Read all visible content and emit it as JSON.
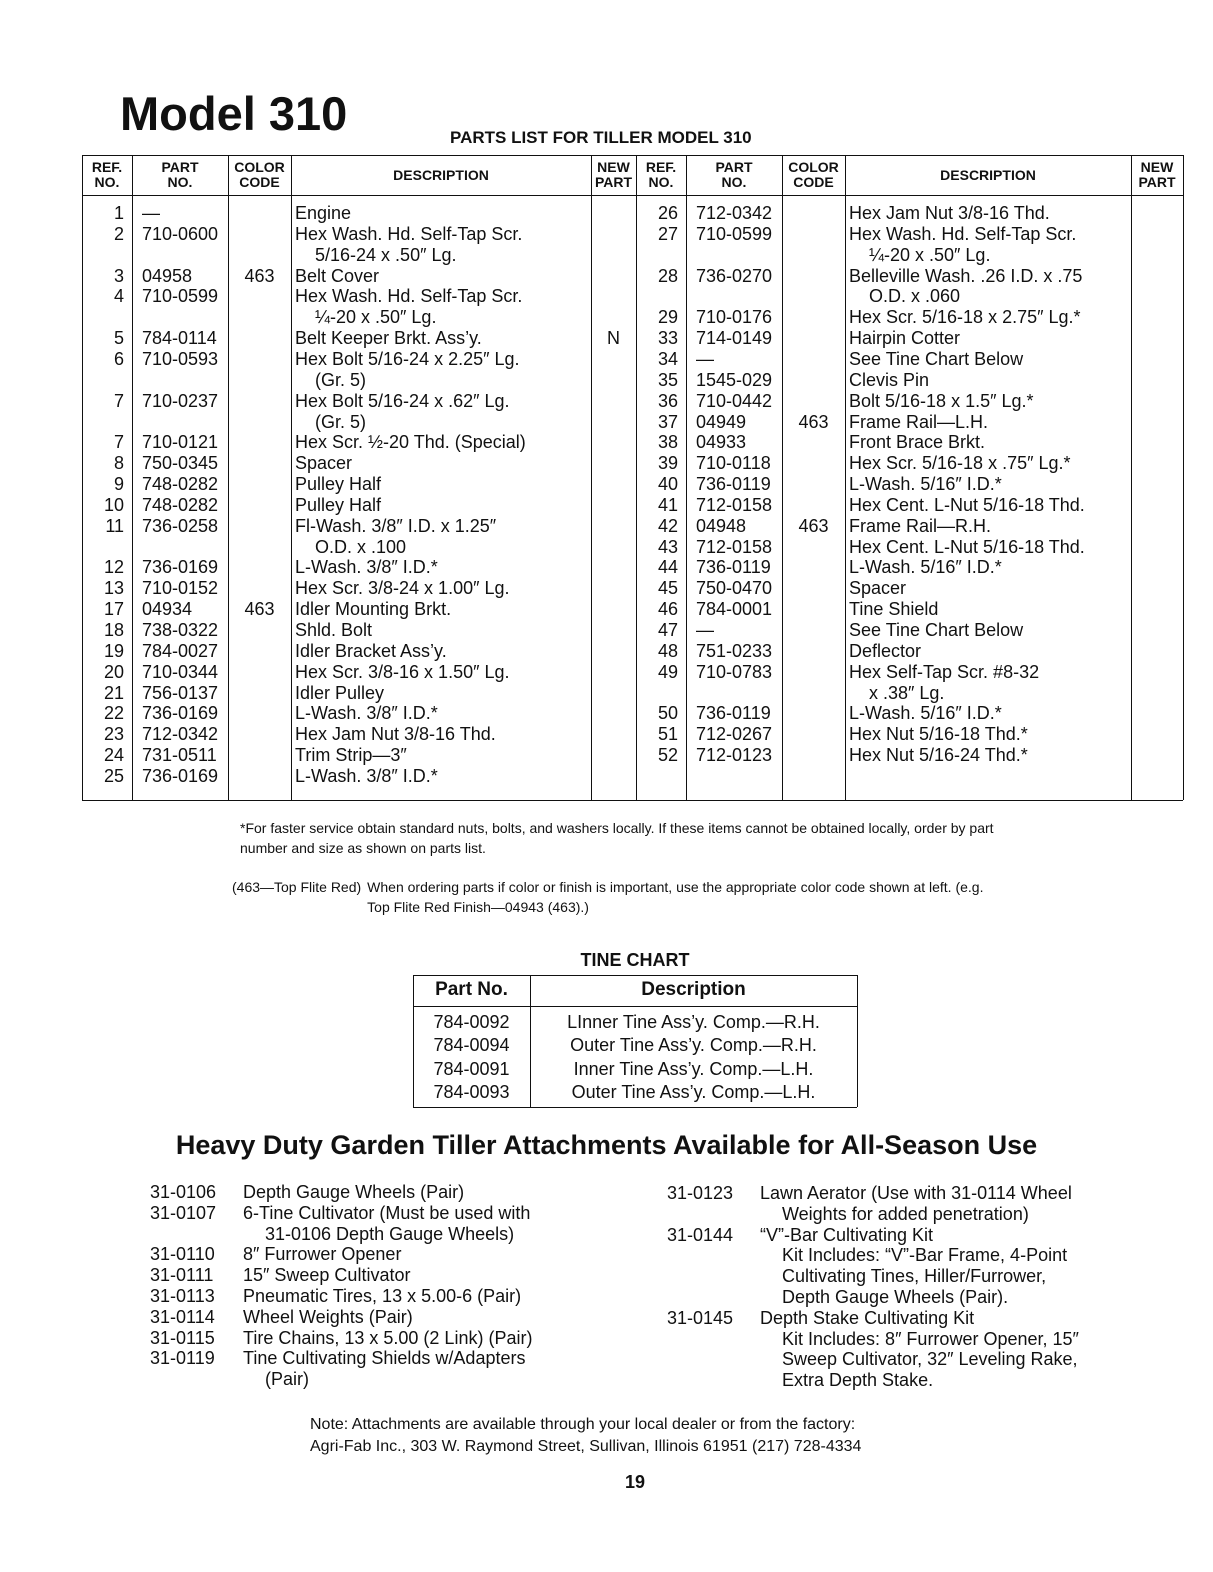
{
  "title": "Model 310",
  "parts_list": {
    "title": "PARTS LIST FOR TILLER MODEL 310",
    "columns": [
      "REF. NO.",
      "PART NO.",
      "COLOR CODE",
      "DESCRIPTION",
      "NEW PART"
    ],
    "left_rows": [
      {
        "ref": "1",
        "part": "—",
        "desc": [
          "Engine"
        ]
      },
      {
        "ref": "2",
        "part": "710-0600",
        "desc": [
          "Hex Wash. Hd. Self-Tap Scr.",
          "5/16-24 x .50″ Lg."
        ]
      },
      {
        "ref": "3",
        "part": "04958",
        "color": "463",
        "desc": [
          "Belt Cover"
        ]
      },
      {
        "ref": "4",
        "part": "710-0599",
        "desc": [
          "Hex Wash. Hd. Self-Tap Scr.",
          "¼-20 x .50″ Lg."
        ]
      },
      {
        "ref": "5",
        "part": "784-0114",
        "desc": [
          "Belt Keeper Brkt. Ass’y."
        ],
        "new": "N"
      },
      {
        "ref": "6",
        "part": "710-0593",
        "desc": [
          "Hex Bolt 5/16-24 x 2.25″ Lg.",
          "(Gr. 5)"
        ]
      },
      {
        "ref": "7",
        "part": "710-0237",
        "desc": [
          "Hex Bolt 5/16-24 x .62″ Lg.",
          "(Gr. 5)"
        ]
      },
      {
        "ref": "7",
        "part": "710-0121",
        "desc": [
          "Hex Scr. ½-20 Thd. (Special)"
        ]
      },
      {
        "ref": "8",
        "part": "750-0345",
        "desc": [
          "Spacer"
        ]
      },
      {
        "ref": "9",
        "part": "748-0282",
        "desc": [
          "Pulley Half"
        ]
      },
      {
        "ref": "10",
        "part": "748-0282",
        "desc": [
          "Pulley Half"
        ]
      },
      {
        "ref": "11",
        "part": "736-0258",
        "desc": [
          "Fl-Wash. 3/8″ I.D. x 1.25″",
          "O.D. x .100"
        ]
      },
      {
        "ref": "12",
        "part": "736-0169",
        "desc": [
          "L-Wash. 3/8″ I.D.*"
        ]
      },
      {
        "ref": "13",
        "part": "710-0152",
        "desc": [
          "Hex Scr. 3/8-24 x 1.00″ Lg."
        ]
      },
      {
        "ref": "17",
        "part": "04934",
        "color": "463",
        "desc": [
          "Idler Mounting Brkt."
        ]
      },
      {
        "ref": "18",
        "part": "738-0322",
        "desc": [
          "Shld. Bolt"
        ]
      },
      {
        "ref": "19",
        "part": "784-0027",
        "desc": [
          "Idler Bracket Ass’y."
        ]
      },
      {
        "ref": "20",
        "part": "710-0344",
        "desc": [
          "Hex Scr. 3/8-16 x 1.50″ Lg."
        ]
      },
      {
        "ref": "21",
        "part": "756-0137",
        "desc": [
          "Idler Pulley"
        ]
      },
      {
        "ref": "22",
        "part": "736-0169",
        "desc": [
          "L-Wash. 3/8″ I.D.*"
        ]
      },
      {
        "ref": "23",
        "part": "712-0342",
        "desc": [
          "Hex Jam Nut 3/8-16 Thd."
        ]
      },
      {
        "ref": "24",
        "part": "731-0511",
        "desc": [
          "Trim Strip—3″"
        ]
      },
      {
        "ref": "25",
        "part": "736-0169",
        "desc": [
          "L-Wash. 3/8″ I.D.*"
        ]
      }
    ],
    "right_rows": [
      {
        "ref": "26",
        "part": "712-0342",
        "desc": [
          "Hex Jam Nut 3/8-16 Thd."
        ]
      },
      {
        "ref": "27",
        "part": "710-0599",
        "desc": [
          "Hex Wash. Hd. Self-Tap Scr.",
          "¼-20 x .50″ Lg."
        ]
      },
      {
        "ref": "28",
        "part": "736-0270",
        "desc": [
          "Belleville Wash. .26 I.D. x .75",
          "O.D. x .060"
        ]
      },
      {
        "ref": "29",
        "part": "710-0176",
        "desc": [
          "Hex Scr. 5/16-18 x 2.75″ Lg.*"
        ]
      },
      {
        "ref": "33",
        "part": "714-0149",
        "desc": [
          "Hairpin Cotter"
        ]
      },
      {
        "ref": "34",
        "part": "—",
        "desc": [
          "See Tine Chart Below"
        ]
      },
      {
        "ref": "35",
        "part": "1545-029",
        "desc": [
          "Clevis Pin"
        ]
      },
      {
        "ref": "36",
        "part": "710-0442",
        "desc": [
          "Bolt 5/16-18 x 1.5″ Lg.*"
        ]
      },
      {
        "ref": "37",
        "part": "04949",
        "color": "463",
        "desc": [
          "Frame Rail—L.H."
        ]
      },
      {
        "ref": "38",
        "part": "04933",
        "desc": [
          "Front Brace Brkt."
        ]
      },
      {
        "ref": "39",
        "part": "710-0118",
        "desc": [
          "Hex Scr. 5/16-18 x .75″ Lg.*"
        ]
      },
      {
        "ref": "40",
        "part": "736-0119",
        "desc": [
          "L-Wash. 5/16″ I.D.*"
        ]
      },
      {
        "ref": "41",
        "part": "712-0158",
        "desc": [
          "Hex Cent. L-Nut 5/16-18 Thd."
        ]
      },
      {
        "ref": "42",
        "part": "04948",
        "color": "463",
        "desc": [
          "Frame Rail—R.H."
        ]
      },
      {
        "ref": "43",
        "part": "712-0158",
        "desc": [
          "Hex Cent. L-Nut 5/16-18 Thd."
        ]
      },
      {
        "ref": "44",
        "part": "736-0119",
        "desc": [
          "L-Wash. 5/16″ I.D.*"
        ]
      },
      {
        "ref": "45",
        "part": "750-0470",
        "desc": [
          "Spacer"
        ]
      },
      {
        "ref": "46",
        "part": "784-0001",
        "desc": [
          "Tine Shield"
        ]
      },
      {
        "ref": "47",
        "part": "—",
        "desc": [
          "See Tine Chart Below"
        ]
      },
      {
        "ref": "48",
        "part": "751-0233",
        "desc": [
          "Deflector"
        ]
      },
      {
        "ref": "49",
        "part": "710-0783",
        "desc": [
          "Hex Self-Tap Scr. #8-32",
          "x .38″ Lg."
        ]
      },
      {
        "ref": "50",
        "part": "736-0119",
        "desc": [
          "L-Wash. 5/16″ I.D.*"
        ]
      },
      {
        "ref": "51",
        "part": "712-0267",
        "desc": [
          "Hex Nut 5/16-18 Thd.*"
        ]
      },
      {
        "ref": "52",
        "part": "712-0123",
        "desc": [
          "Hex Nut 5/16-24 Thd.*"
        ]
      }
    ]
  },
  "footnote": "*For faster service obtain standard nuts, bolts, and washers locally. If these items cannot be obtained locally, order by part number and size as shown on parts list.",
  "color_note": {
    "label": "(463—Top Flite Red)",
    "text": "When ordering parts if color or finish is important, use the appropriate color code shown at left. (e.g. Top Flite Red Finish—04943 (463).)"
  },
  "tine_chart": {
    "title": "TINE CHART",
    "columns": [
      "Part No.",
      "Description"
    ],
    "rows": [
      [
        "784-0092",
        "LInner Tine Ass’y. Comp.—R.H."
      ],
      [
        "784-0094",
        "Outer Tine Ass’y. Comp.—R.H."
      ],
      [
        "784-0091",
        "Inner Tine Ass’y. Comp.—L.H."
      ],
      [
        "784-0093",
        "Outer Tine Ass’y. Comp.—L.H."
      ]
    ]
  },
  "attachments": {
    "title": "Heavy Duty Garden Tiller Attachments Available for All-Season Use",
    "left": [
      {
        "code": "31-0106",
        "lines": [
          "Depth Gauge Wheels (Pair)"
        ]
      },
      {
        "code": "31-0107",
        "lines": [
          "6-Tine Cultivator (Must be used with",
          "31-0106 Depth Gauge Wheels)"
        ]
      },
      {
        "code": "31-0110",
        "lines": [
          "8″ Furrower Opener"
        ]
      },
      {
        "code": "31-0111",
        "lines": [
          "15″ Sweep Cultivator"
        ]
      },
      {
        "code": "31-0113",
        "lines": [
          "Pneumatic Tires, 13 x 5.00-6 (Pair)"
        ]
      },
      {
        "code": "31-0114",
        "lines": [
          "Wheel Weights (Pair)"
        ]
      },
      {
        "code": "31-0115",
        "lines": [
          "Tire Chains, 13 x 5.00 (2 Link) (Pair)"
        ]
      },
      {
        "code": "31-0119",
        "lines": [
          "Tine Cultivating Shields w/Adapters",
          "(Pair)"
        ]
      }
    ],
    "right": [
      {
        "code": "31-0123",
        "lines": [
          "Lawn Aerator (Use with 31-0114 Wheel",
          "Weights for added penetration)"
        ]
      },
      {
        "code": "31-0144",
        "lines": [
          "“V”-Bar Cultivating Kit",
          "Kit Includes: “V”-Bar Frame, 4-Point",
          "Cultivating Tines, Hiller/Furrower,",
          "Depth Gauge Wheels (Pair)."
        ]
      },
      {
        "code": "31-0145",
        "lines": [
          "Depth Stake Cultivating Kit",
          "Kit Includes: 8″ Furrower Opener, 15″",
          "Sweep Cultivator, 32″ Leveling Rake,",
          "Extra Depth Stake."
        ]
      }
    ]
  },
  "note": [
    "Note: Attachments are available through your local dealer or from the factory:",
    "Agri-Fab Inc., 303 W. Raymond Street, Sullivan, Illinois 61951 (217) 728-4334"
  ],
  "page_number": "19"
}
